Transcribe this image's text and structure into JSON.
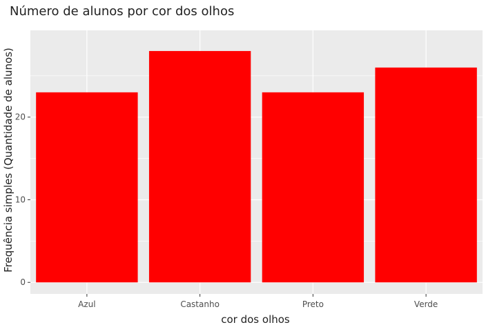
{
  "chart_data": {
    "type": "bar",
    "title": "Número de alunos por cor dos olhos",
    "xlabel": "cor dos olhos",
    "ylabel": "Frequência simples (Quantidade de alunos)",
    "categories": [
      "Azul",
      "Castanho",
      "Preto",
      "Verde"
    ],
    "values": [
      23,
      28,
      23,
      26
    ],
    "ylim": [
      -1.4,
      30.5
    ],
    "yticks": [
      0,
      10,
      20
    ],
    "grid": true,
    "legend": "none",
    "colors": {
      "bar": "#ff0000",
      "panel_background": "#ebebeb",
      "gridline": "#ffffff",
      "tick_mark": "#333333"
    }
  }
}
